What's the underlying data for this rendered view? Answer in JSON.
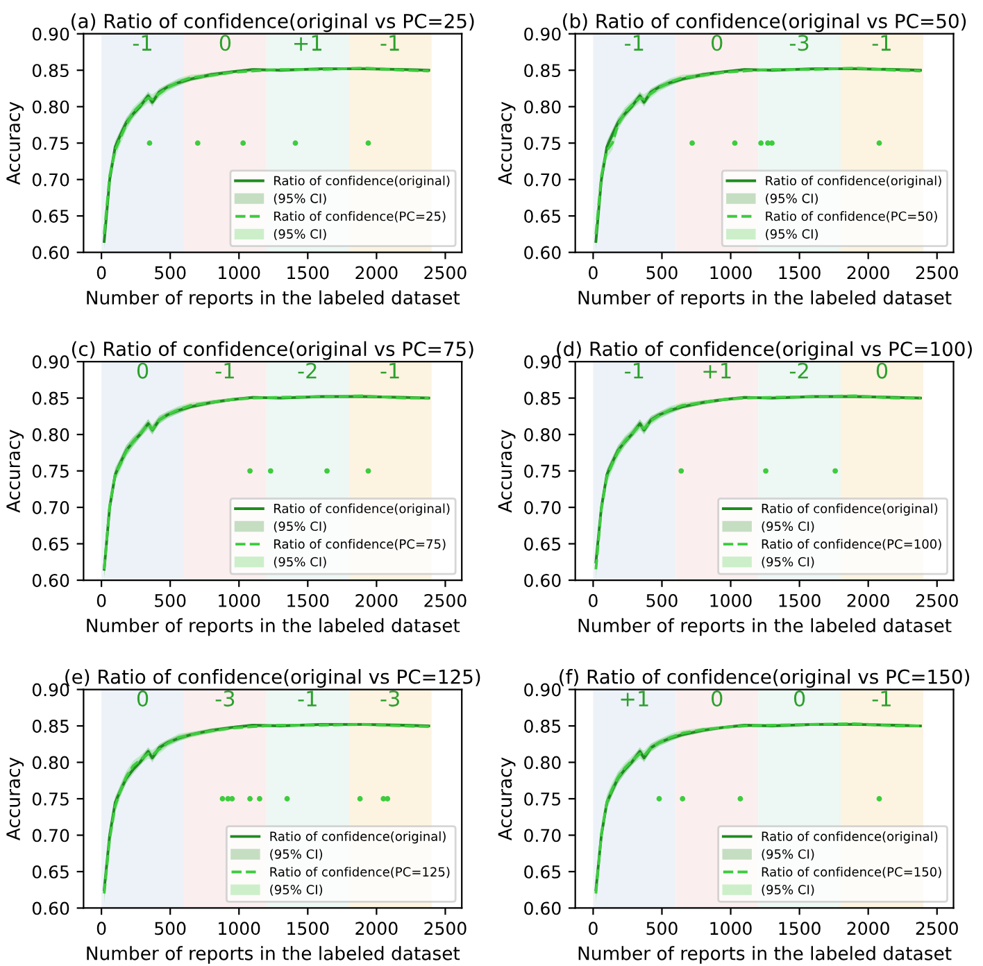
{
  "chart_data": [
    {
      "type": "line",
      "title": "(a) Ratio of confidence(original vs PC=25)",
      "xlabel": "Number of reports in the labeled dataset",
      "ylabel": "Accuracy",
      "xlim": [
        -130,
        2620
      ],
      "ylim": [
        0.6,
        0.9
      ],
      "xticks": [
        0,
        500,
        1000,
        1500,
        2000,
        2500
      ],
      "yticks": [
        {
          "value": 0.6,
          "label": "0.60"
        },
        {
          "value": 0.65,
          "label": "0.65"
        },
        {
          "value": 0.7,
          "label": "0.70"
        },
        {
          "value": 0.75,
          "label": "0.75"
        },
        {
          "value": 0.8,
          "label": "0.80"
        },
        {
          "value": 0.85,
          "label": "0.85"
        },
        {
          "value": 0.9,
          "label": "0.90"
        }
      ],
      "legend": "bottom right",
      "grid": false,
      "annotations": [
        "(95% CI)",
        "(95% CI)"
      ],
      "bands": [
        {
          "axis": "x",
          "from": 0,
          "to": 600,
          "color": "#edf2f8",
          "label": "-1"
        },
        {
          "axis": "x",
          "from": 600,
          "to": 1200,
          "color": "#fbeeee",
          "label": "0"
        },
        {
          "axis": "x",
          "from": 1200,
          "to": 1800,
          "color": "#edf7f4",
          "label": "+1"
        },
        {
          "axis": "x",
          "from": 1800,
          "to": 2400,
          "color": "#fcf3e1",
          "label": "-1"
        }
      ],
      "x": [
        20,
        60,
        100,
        140,
        180,
        230,
        280,
        340,
        370,
        420,
        480,
        560,
        650,
        800,
        950,
        1100,
        1300,
        1600,
        1900,
        2200,
        2380
      ],
      "series": [
        {
          "name": "Ratio of confidence(original)",
          "line_style": "solid",
          "color": "#1e8c1e",
          "values": [
            0.615,
            0.7,
            0.745,
            0.762,
            0.778,
            0.79,
            0.8,
            0.815,
            0.806,
            0.82,
            0.827,
            0.833,
            0.838,
            0.844,
            0.848,
            0.851,
            0.85,
            0.852,
            0.852,
            0.851,
            0.85
          ],
          "lower": [
            0.605,
            0.69,
            0.737,
            0.755,
            0.771,
            0.784,
            0.795,
            0.809,
            0.8,
            0.815,
            0.823,
            0.829,
            0.835,
            0.841,
            0.846,
            0.849,
            0.848,
            0.85,
            0.85,
            0.849,
            0.848
          ],
          "upper": [
            0.625,
            0.71,
            0.753,
            0.769,
            0.785,
            0.796,
            0.805,
            0.821,
            0.812,
            0.825,
            0.831,
            0.837,
            0.841,
            0.847,
            0.85,
            0.853,
            0.852,
            0.854,
            0.854,
            0.853,
            0.852
          ]
        },
        {
          "name": "Ratio of confidence(PC=25)",
          "line_style": "dashed",
          "color": "#3dcc3d",
          "values": [
            0.625,
            0.705,
            0.74,
            0.758,
            0.775,
            0.792,
            0.802,
            0.812,
            0.81,
            0.818,
            0.826,
            0.834,
            0.84,
            0.843,
            0.847,
            0.849,
            0.851,
            0.851,
            0.853,
            0.85,
            0.849
          ],
          "lower": [
            0.612,
            0.692,
            0.73,
            0.749,
            0.767,
            0.785,
            0.796,
            0.805,
            0.803,
            0.812,
            0.821,
            0.829,
            0.836,
            0.84,
            0.845,
            0.847,
            0.849,
            0.849,
            0.851,
            0.848,
            0.847
          ],
          "upper": [
            0.638,
            0.718,
            0.75,
            0.767,
            0.783,
            0.799,
            0.808,
            0.819,
            0.817,
            0.824,
            0.831,
            0.839,
            0.844,
            0.846,
            0.849,
            0.851,
            0.853,
            0.853,
            0.855,
            0.852,
            0.851
          ]
        },
        {
          "type": "scatter",
          "marker": "circle",
          "color": "#3dcc3d",
          "x": [
            350,
            700,
            1030,
            1410,
            1940
          ],
          "values": [
            0.75,
            0.75,
            0.75,
            0.75,
            0.75
          ]
        }
      ]
    },
    {
      "type": "line",
      "title": "(b) Ratio of confidence(original vs PC=50)",
      "xlabel": "Number of reports in the labeled dataset",
      "ylabel": "Accuracy",
      "xlim": [
        -130,
        2620
      ],
      "ylim": [
        0.6,
        0.9
      ],
      "xticks": [
        0,
        500,
        1000,
        1500,
        2000,
        2500
      ],
      "yticks": [
        {
          "value": 0.6,
          "label": "0.60"
        },
        {
          "value": 0.65,
          "label": "0.65"
        },
        {
          "value": 0.7,
          "label": "0.70"
        },
        {
          "value": 0.75,
          "label": "0.75"
        },
        {
          "value": 0.8,
          "label": "0.80"
        },
        {
          "value": 0.85,
          "label": "0.85"
        },
        {
          "value": 0.9,
          "label": "0.90"
        }
      ],
      "legend": "bottom right",
      "grid": false,
      "annotations": [
        "(95% CI)",
        "(95% CI)"
      ],
      "bands": [
        {
          "axis": "x",
          "from": 0,
          "to": 600,
          "color": "#edf2f8",
          "label": "-1"
        },
        {
          "axis": "x",
          "from": 600,
          "to": 1200,
          "color": "#fbeeee",
          "label": "0"
        },
        {
          "axis": "x",
          "from": 1200,
          "to": 1800,
          "color": "#edf7f4",
          "label": "-3"
        },
        {
          "axis": "x",
          "from": 1800,
          "to": 2400,
          "color": "#fcf3e1",
          "label": "-1"
        }
      ],
      "x": [
        20,
        60,
        100,
        140,
        180,
        230,
        280,
        340,
        370,
        420,
        480,
        560,
        650,
        800,
        950,
        1100,
        1300,
        1600,
        1900,
        2200,
        2380
      ],
      "series": [
        {
          "name": "Ratio of confidence(original)",
          "line_style": "solid",
          "color": "#1e8c1e",
          "values": [
            0.615,
            0.7,
            0.745,
            0.762,
            0.778,
            0.79,
            0.8,
            0.815,
            0.806,
            0.82,
            0.827,
            0.833,
            0.838,
            0.844,
            0.848,
            0.851,
            0.85,
            0.852,
            0.852,
            0.851,
            0.85
          ],
          "lower": [
            0.605,
            0.69,
            0.737,
            0.755,
            0.771,
            0.784,
            0.795,
            0.809,
            0.8,
            0.815,
            0.823,
            0.829,
            0.835,
            0.841,
            0.846,
            0.849,
            0.848,
            0.85,
            0.85,
            0.849,
            0.848
          ],
          "upper": [
            0.625,
            0.71,
            0.753,
            0.769,
            0.785,
            0.796,
            0.805,
            0.821,
            0.812,
            0.825,
            0.831,
            0.837,
            0.841,
            0.847,
            0.85,
            0.853,
            0.852,
            0.854,
            0.854,
            0.853,
            0.852
          ]
        },
        {
          "name": "Ratio of confidence(PC=50)",
          "line_style": "dashed",
          "color": "#3dcc3d",
          "values": [
            0.625,
            0.705,
            0.74,
            0.75,
            0.775,
            0.792,
            0.802,
            0.812,
            0.81,
            0.818,
            0.826,
            0.834,
            0.84,
            0.843,
            0.847,
            0.849,
            0.851,
            0.851,
            0.853,
            0.85,
            0.849
          ],
          "lower": [
            0.612,
            0.692,
            0.73,
            0.741,
            0.767,
            0.785,
            0.796,
            0.805,
            0.803,
            0.812,
            0.821,
            0.829,
            0.836,
            0.84,
            0.845,
            0.847,
            0.849,
            0.849,
            0.851,
            0.848,
            0.847
          ],
          "upper": [
            0.638,
            0.718,
            0.75,
            0.759,
            0.783,
            0.799,
            0.808,
            0.819,
            0.817,
            0.824,
            0.831,
            0.839,
            0.844,
            0.846,
            0.849,
            0.851,
            0.853,
            0.853,
            0.855,
            0.852,
            0.851
          ]
        },
        {
          "type": "scatter",
          "marker": "circle",
          "color": "#3dcc3d",
          "x": [
            720,
            1030,
            1220,
            1270,
            1300,
            2080
          ],
          "values": [
            0.75,
            0.75,
            0.75,
            0.75,
            0.75,
            0.75
          ]
        }
      ]
    },
    {
      "type": "line",
      "title": "(c) Ratio of confidence(original vs PC=75)",
      "xlabel": "Number of reports in the labeled dataset",
      "ylabel": "Accuracy",
      "xlim": [
        -130,
        2620
      ],
      "ylim": [
        0.6,
        0.9
      ],
      "xticks": [
        0,
        500,
        1000,
        1500,
        2000,
        2500
      ],
      "yticks": [
        {
          "value": 0.6,
          "label": "0.60"
        },
        {
          "value": 0.65,
          "label": "0.65"
        },
        {
          "value": 0.7,
          "label": "0.70"
        },
        {
          "value": 0.75,
          "label": "0.75"
        },
        {
          "value": 0.8,
          "label": "0.80"
        },
        {
          "value": 0.85,
          "label": "0.85"
        },
        {
          "value": 0.9,
          "label": "0.90"
        }
      ],
      "legend": "bottom right",
      "grid": false,
      "annotations": [
        "(95% CI)",
        "(95% CI)"
      ],
      "bands": [
        {
          "axis": "x",
          "from": 0,
          "to": 600,
          "color": "#edf2f8",
          "label": "0"
        },
        {
          "axis": "x",
          "from": 600,
          "to": 1200,
          "color": "#fbeeee",
          "label": "-1"
        },
        {
          "axis": "x",
          "from": 1200,
          "to": 1800,
          "color": "#edf7f4",
          "label": "-2"
        },
        {
          "axis": "x",
          "from": 1800,
          "to": 2400,
          "color": "#fcf3e1",
          "label": "-1"
        }
      ],
      "x": [
        20,
        60,
        100,
        140,
        180,
        230,
        280,
        340,
        370,
        420,
        480,
        560,
        650,
        800,
        950,
        1100,
        1300,
        1600,
        1900,
        2200,
        2380
      ],
      "series": [
        {
          "name": "Ratio of confidence(original)",
          "line_style": "solid",
          "color": "#1e8c1e",
          "values": [
            0.615,
            0.7,
            0.745,
            0.762,
            0.778,
            0.79,
            0.8,
            0.815,
            0.806,
            0.82,
            0.827,
            0.833,
            0.838,
            0.844,
            0.848,
            0.851,
            0.85,
            0.852,
            0.852,
            0.851,
            0.85
          ],
          "lower": [
            0.605,
            0.69,
            0.737,
            0.755,
            0.771,
            0.784,
            0.795,
            0.809,
            0.8,
            0.815,
            0.823,
            0.829,
            0.835,
            0.841,
            0.846,
            0.849,
            0.848,
            0.85,
            0.85,
            0.849,
            0.848
          ],
          "upper": [
            0.625,
            0.71,
            0.753,
            0.769,
            0.785,
            0.796,
            0.805,
            0.821,
            0.812,
            0.825,
            0.831,
            0.837,
            0.841,
            0.847,
            0.85,
            0.853,
            0.852,
            0.854,
            0.854,
            0.853,
            0.852
          ]
        },
        {
          "name": "Ratio of confidence(PC=75)",
          "line_style": "dashed",
          "color": "#3dcc3d",
          "values": [
            0.615,
            0.702,
            0.745,
            0.76,
            0.777,
            0.79,
            0.801,
            0.814,
            0.807,
            0.82,
            0.827,
            0.834,
            0.84,
            0.844,
            0.848,
            0.85,
            0.851,
            0.852,
            0.853,
            0.85,
            0.85
          ],
          "lower": [
            0.602,
            0.689,
            0.735,
            0.751,
            0.769,
            0.783,
            0.795,
            0.807,
            0.8,
            0.814,
            0.822,
            0.829,
            0.836,
            0.841,
            0.846,
            0.848,
            0.849,
            0.85,
            0.851,
            0.848,
            0.848
          ],
          "upper": [
            0.628,
            0.715,
            0.755,
            0.769,
            0.785,
            0.797,
            0.807,
            0.821,
            0.814,
            0.826,
            0.832,
            0.839,
            0.844,
            0.847,
            0.85,
            0.852,
            0.853,
            0.854,
            0.855,
            0.852,
            0.852
          ]
        },
        {
          "type": "scatter",
          "marker": "circle",
          "color": "#3dcc3d",
          "x": [
            1080,
            1230,
            1640,
            1940
          ],
          "values": [
            0.75,
            0.75,
            0.75,
            0.75
          ]
        }
      ]
    },
    {
      "type": "line",
      "title": "(d) Ratio of confidence(original vs PC=100)",
      "xlabel": "Number of reports in the labeled dataset",
      "ylabel": "Accuracy",
      "xlim": [
        -130,
        2620
      ],
      "ylim": [
        0.6,
        0.9
      ],
      "xticks": [
        0,
        500,
        1000,
        1500,
        2000,
        2500
      ],
      "yticks": [
        {
          "value": 0.6,
          "label": "0.60"
        },
        {
          "value": 0.65,
          "label": "0.65"
        },
        {
          "value": 0.7,
          "label": "0.70"
        },
        {
          "value": 0.75,
          "label": "0.75"
        },
        {
          "value": 0.8,
          "label": "0.80"
        },
        {
          "value": 0.85,
          "label": "0.85"
        },
        {
          "value": 0.9,
          "label": "0.90"
        }
      ],
      "legend": "bottom right",
      "grid": false,
      "annotations": [
        "(95% CI)",
        "(95% CI)"
      ],
      "bands": [
        {
          "axis": "x",
          "from": 0,
          "to": 600,
          "color": "#edf2f8",
          "label": "-1"
        },
        {
          "axis": "x",
          "from": 600,
          "to": 1200,
          "color": "#fbeeee",
          "label": "+1"
        },
        {
          "axis": "x",
          "from": 1200,
          "to": 1800,
          "color": "#edf7f4",
          "label": "-2"
        },
        {
          "axis": "x",
          "from": 1800,
          "to": 2400,
          "color": "#fcf3e1",
          "label": "0"
        }
      ],
      "x": [
        20,
        60,
        100,
        140,
        180,
        230,
        280,
        340,
        370,
        420,
        480,
        560,
        650,
        800,
        950,
        1100,
        1300,
        1600,
        1900,
        2200,
        2380
      ],
      "series": [
        {
          "name": "Ratio of confidence(original)",
          "line_style": "solid",
          "color": "#1e8c1e",
          "values": [
            0.625,
            0.7,
            0.745,
            0.762,
            0.778,
            0.79,
            0.8,
            0.815,
            0.806,
            0.82,
            0.827,
            0.833,
            0.838,
            0.844,
            0.848,
            0.851,
            0.85,
            0.852,
            0.852,
            0.851,
            0.85
          ],
          "lower": [
            0.615,
            0.69,
            0.737,
            0.755,
            0.771,
            0.784,
            0.795,
            0.809,
            0.8,
            0.815,
            0.823,
            0.829,
            0.835,
            0.841,
            0.846,
            0.849,
            0.848,
            0.85,
            0.85,
            0.849,
            0.848
          ],
          "upper": [
            0.635,
            0.71,
            0.753,
            0.769,
            0.785,
            0.796,
            0.805,
            0.821,
            0.812,
            0.825,
            0.831,
            0.837,
            0.841,
            0.847,
            0.85,
            0.853,
            0.852,
            0.854,
            0.854,
            0.853,
            0.852
          ]
        },
        {
          "name": "Ratio of confidence(PC=100)",
          "line_style": "dashed",
          "color": "#3dcc3d",
          "values": [
            0.615,
            0.698,
            0.742,
            0.76,
            0.776,
            0.791,
            0.801,
            0.813,
            0.808,
            0.819,
            0.826,
            0.834,
            0.84,
            0.844,
            0.848,
            0.85,
            0.851,
            0.852,
            0.853,
            0.85,
            0.85
          ],
          "lower": [
            0.602,
            0.685,
            0.732,
            0.751,
            0.768,
            0.784,
            0.795,
            0.806,
            0.801,
            0.813,
            0.821,
            0.829,
            0.836,
            0.841,
            0.846,
            0.848,
            0.849,
            0.85,
            0.851,
            0.848,
            0.848
          ],
          "upper": [
            0.628,
            0.711,
            0.752,
            0.769,
            0.784,
            0.798,
            0.807,
            0.82,
            0.815,
            0.825,
            0.831,
            0.839,
            0.844,
            0.847,
            0.85,
            0.852,
            0.853,
            0.854,
            0.855,
            0.852,
            0.852
          ]
        },
        {
          "type": "scatter",
          "marker": "circle",
          "color": "#3dcc3d",
          "x": [
            640,
            1255,
            1760
          ],
          "values": [
            0.75,
            0.75,
            0.75
          ]
        }
      ]
    },
    {
      "type": "line",
      "title": "(e) Ratio of confidence(original vs PC=125)",
      "xlabel": "Number of reports in the labeled dataset",
      "ylabel": "Accuracy",
      "xlim": [
        -130,
        2620
      ],
      "ylim": [
        0.6,
        0.9
      ],
      "xticks": [
        0,
        500,
        1000,
        1500,
        2000,
        2500
      ],
      "yticks": [
        {
          "value": 0.6,
          "label": "0.60"
        },
        {
          "value": 0.65,
          "label": "0.65"
        },
        {
          "value": 0.7,
          "label": "0.70"
        },
        {
          "value": 0.75,
          "label": "0.75"
        },
        {
          "value": 0.8,
          "label": "0.80"
        },
        {
          "value": 0.85,
          "label": "0.85"
        },
        {
          "value": 0.9,
          "label": "0.90"
        }
      ],
      "legend": "bottom right",
      "grid": false,
      "annotations": [
        "(95% CI)",
        "(95% CI)"
      ],
      "bands": [
        {
          "axis": "x",
          "from": 0,
          "to": 600,
          "color": "#edf2f8",
          "label": "0"
        },
        {
          "axis": "x",
          "from": 600,
          "to": 1200,
          "color": "#fbeeee",
          "label": "-3"
        },
        {
          "axis": "x",
          "from": 1200,
          "to": 1800,
          "color": "#edf7f4",
          "label": "-1"
        },
        {
          "axis": "x",
          "from": 1800,
          "to": 2400,
          "color": "#fcf3e1",
          "label": "-3"
        }
      ],
      "x": [
        20,
        60,
        100,
        140,
        180,
        230,
        280,
        340,
        370,
        420,
        480,
        560,
        650,
        800,
        950,
        1100,
        1300,
        1600,
        1900,
        2200,
        2380
      ],
      "series": [
        {
          "name": "Ratio of confidence(original)",
          "line_style": "solid",
          "color": "#1e8c1e",
          "values": [
            0.625,
            0.7,
            0.745,
            0.762,
            0.778,
            0.79,
            0.8,
            0.815,
            0.806,
            0.82,
            0.827,
            0.833,
            0.838,
            0.844,
            0.848,
            0.851,
            0.85,
            0.852,
            0.852,
            0.851,
            0.85
          ],
          "lower": [
            0.615,
            0.69,
            0.737,
            0.755,
            0.771,
            0.784,
            0.795,
            0.809,
            0.8,
            0.815,
            0.823,
            0.829,
            0.835,
            0.841,
            0.846,
            0.849,
            0.848,
            0.85,
            0.85,
            0.849,
            0.848
          ],
          "upper": [
            0.635,
            0.71,
            0.753,
            0.769,
            0.785,
            0.796,
            0.805,
            0.821,
            0.812,
            0.825,
            0.831,
            0.837,
            0.841,
            0.847,
            0.85,
            0.853,
            0.852,
            0.854,
            0.854,
            0.853,
            0.852
          ]
        },
        {
          "name": "Ratio of confidence(PC=125)",
          "line_style": "dashed",
          "color": "#3dcc3d",
          "values": [
            0.62,
            0.695,
            0.74,
            0.762,
            0.78,
            0.795,
            0.803,
            0.812,
            0.81,
            0.818,
            0.826,
            0.834,
            0.838,
            0.843,
            0.847,
            0.849,
            0.851,
            0.851,
            0.852,
            0.85,
            0.849
          ],
          "lower": [
            0.607,
            0.682,
            0.73,
            0.753,
            0.772,
            0.788,
            0.797,
            0.805,
            0.803,
            0.812,
            0.821,
            0.829,
            0.834,
            0.84,
            0.845,
            0.847,
            0.849,
            0.849,
            0.85,
            0.848,
            0.847
          ],
          "upper": [
            0.633,
            0.708,
            0.75,
            0.771,
            0.788,
            0.802,
            0.809,
            0.819,
            0.817,
            0.824,
            0.831,
            0.839,
            0.842,
            0.846,
            0.849,
            0.851,
            0.853,
            0.853,
            0.854,
            0.852,
            0.851
          ]
        },
        {
          "type": "scatter",
          "marker": "circle",
          "color": "#3dcc3d",
          "x": [
            880,
            920,
            950,
            1080,
            1150,
            1350,
            1880,
            2050,
            2080
          ],
          "values": [
            0.75,
            0.75,
            0.75,
            0.75,
            0.75,
            0.75,
            0.75,
            0.75,
            0.75
          ]
        }
      ]
    },
    {
      "type": "line",
      "title": "(f) Ratio of confidence(original vs PC=150)",
      "xlabel": "Number of reports in the labeled dataset",
      "ylabel": "Accuracy",
      "xlim": [
        -130,
        2620
      ],
      "ylim": [
        0.6,
        0.9
      ],
      "xticks": [
        0,
        500,
        1000,
        1500,
        2000,
        2500
      ],
      "yticks": [
        {
          "value": 0.6,
          "label": "0.60"
        },
        {
          "value": 0.65,
          "label": "0.65"
        },
        {
          "value": 0.7,
          "label": "0.70"
        },
        {
          "value": 0.75,
          "label": "0.75"
        },
        {
          "value": 0.8,
          "label": "0.80"
        },
        {
          "value": 0.85,
          "label": "0.85"
        },
        {
          "value": 0.9,
          "label": "0.90"
        }
      ],
      "legend": "bottom right",
      "grid": false,
      "annotations": [
        "(95% CI)",
        "(95% CI)"
      ],
      "bands": [
        {
          "axis": "x",
          "from": 0,
          "to": 600,
          "color": "#edf2f8",
          "label": "+1"
        },
        {
          "axis": "x",
          "from": 600,
          "to": 1200,
          "color": "#fbeeee",
          "label": "0"
        },
        {
          "axis": "x",
          "from": 1200,
          "to": 1800,
          "color": "#edf7f4",
          "label": "0"
        },
        {
          "axis": "x",
          "from": 1800,
          "to": 2400,
          "color": "#fcf3e1",
          "label": "-1"
        }
      ],
      "x": [
        20,
        60,
        100,
        140,
        180,
        230,
        280,
        340,
        370,
        420,
        480,
        560,
        650,
        800,
        950,
        1100,
        1300,
        1600,
        1900,
        2200,
        2380
      ],
      "series": [
        {
          "name": "Ratio of confidence(original)",
          "line_style": "solid",
          "color": "#1e8c1e",
          "values": [
            0.625,
            0.7,
            0.745,
            0.762,
            0.778,
            0.79,
            0.8,
            0.815,
            0.806,
            0.82,
            0.827,
            0.833,
            0.838,
            0.844,
            0.848,
            0.851,
            0.85,
            0.852,
            0.852,
            0.851,
            0.85
          ],
          "lower": [
            0.615,
            0.69,
            0.737,
            0.755,
            0.771,
            0.784,
            0.795,
            0.809,
            0.8,
            0.815,
            0.823,
            0.829,
            0.835,
            0.841,
            0.846,
            0.849,
            0.848,
            0.85,
            0.85,
            0.849,
            0.848
          ],
          "upper": [
            0.635,
            0.71,
            0.753,
            0.769,
            0.785,
            0.796,
            0.805,
            0.821,
            0.812,
            0.825,
            0.831,
            0.837,
            0.841,
            0.847,
            0.85,
            0.853,
            0.852,
            0.854,
            0.854,
            0.853,
            0.852
          ]
        },
        {
          "name": "Ratio of confidence(PC=150)",
          "line_style": "dashed",
          "color": "#3dcc3d",
          "values": [
            0.62,
            0.702,
            0.746,
            0.764,
            0.779,
            0.792,
            0.802,
            0.812,
            0.809,
            0.82,
            0.827,
            0.834,
            0.84,
            0.845,
            0.848,
            0.85,
            0.851,
            0.852,
            0.853,
            0.85,
            0.85
          ],
          "lower": [
            0.607,
            0.689,
            0.736,
            0.755,
            0.771,
            0.785,
            0.796,
            0.805,
            0.802,
            0.814,
            0.822,
            0.829,
            0.836,
            0.842,
            0.846,
            0.848,
            0.849,
            0.85,
            0.851,
            0.848,
            0.848
          ],
          "upper": [
            0.633,
            0.715,
            0.756,
            0.773,
            0.787,
            0.799,
            0.808,
            0.819,
            0.816,
            0.826,
            0.832,
            0.839,
            0.844,
            0.848,
            0.85,
            0.852,
            0.853,
            0.854,
            0.855,
            0.852,
            0.852
          ]
        },
        {
          "type": "scatter",
          "marker": "circle",
          "color": "#3dcc3d",
          "x": [
            480,
            650,
            1070,
            2080
          ],
          "values": [
            0.75,
            0.75,
            0.75,
            0.75
          ]
        }
      ]
    }
  ]
}
